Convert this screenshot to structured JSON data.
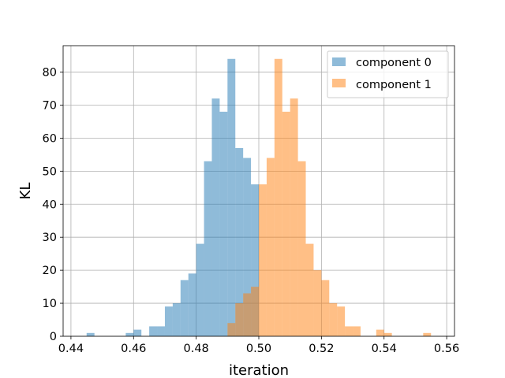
{
  "chart_data": {
    "type": "bar",
    "subtype": "overlapping-histogram",
    "title": "",
    "xlabel": "iteration",
    "ylabel": "KL",
    "xlim": [
      0.4375,
      0.5625
    ],
    "ylim": [
      0,
      88
    ],
    "xticks": [
      0.44,
      0.46,
      0.48,
      0.5,
      0.52,
      0.54,
      0.56
    ],
    "xtick_labels": [
      "0.44",
      "0.46",
      "0.48",
      "0.50",
      "0.52",
      "0.54",
      "0.56"
    ],
    "yticks": [
      0,
      10,
      20,
      30,
      40,
      50,
      60,
      70,
      80
    ],
    "ytick_labels": [
      "0",
      "10",
      "20",
      "30",
      "40",
      "50",
      "60",
      "70",
      "80"
    ],
    "grid": true,
    "legend_position": "top-right",
    "series": [
      {
        "name": "component 0",
        "color": "#1f77b4",
        "opacity": 0.5,
        "bin_width": 0.0025,
        "bins": [
          {
            "x0": 0.445,
            "count": 1
          },
          {
            "x0": 0.4575,
            "count": 1
          },
          {
            "x0": 0.46,
            "count": 2
          },
          {
            "x0": 0.465,
            "count": 3
          },
          {
            "x0": 0.4675,
            "count": 3
          },
          {
            "x0": 0.47,
            "count": 9
          },
          {
            "x0": 0.4725,
            "count": 10
          },
          {
            "x0": 0.475,
            "count": 17
          },
          {
            "x0": 0.4775,
            "count": 19
          },
          {
            "x0": 0.48,
            "count": 28
          },
          {
            "x0": 0.4825,
            "count": 53
          },
          {
            "x0": 0.485,
            "count": 72
          },
          {
            "x0": 0.4875,
            "count": 68
          },
          {
            "x0": 0.49,
            "count": 84
          },
          {
            "x0": 0.4925,
            "count": 57
          },
          {
            "x0": 0.495,
            "count": 54
          },
          {
            "x0": 0.4975,
            "count": 46
          }
        ]
      },
      {
        "name": "component 1",
        "color": "#ff7f0e",
        "opacity": 0.5,
        "bin_width": 0.0025,
        "bins": [
          {
            "x0": 0.49,
            "count": 4
          },
          {
            "x0": 0.4925,
            "count": 10
          },
          {
            "x0": 0.495,
            "count": 13
          },
          {
            "x0": 0.4975,
            "count": 15
          },
          {
            "x0": 0.5,
            "count": 46
          },
          {
            "x0": 0.5025,
            "count": 54
          },
          {
            "x0": 0.505,
            "count": 84
          },
          {
            "x0": 0.5075,
            "count": 68
          },
          {
            "x0": 0.51,
            "count": 72
          },
          {
            "x0": 0.5125,
            "count": 53
          },
          {
            "x0": 0.515,
            "count": 28
          },
          {
            "x0": 0.5175,
            "count": 20
          },
          {
            "x0": 0.52,
            "count": 17
          },
          {
            "x0": 0.5225,
            "count": 10
          },
          {
            "x0": 0.525,
            "count": 9
          },
          {
            "x0": 0.5275,
            "count": 3
          },
          {
            "x0": 0.53,
            "count": 3
          },
          {
            "x0": 0.5375,
            "count": 2
          },
          {
            "x0": 0.54,
            "count": 1
          },
          {
            "x0": 0.5525,
            "count": 1
          }
        ]
      }
    ]
  }
}
